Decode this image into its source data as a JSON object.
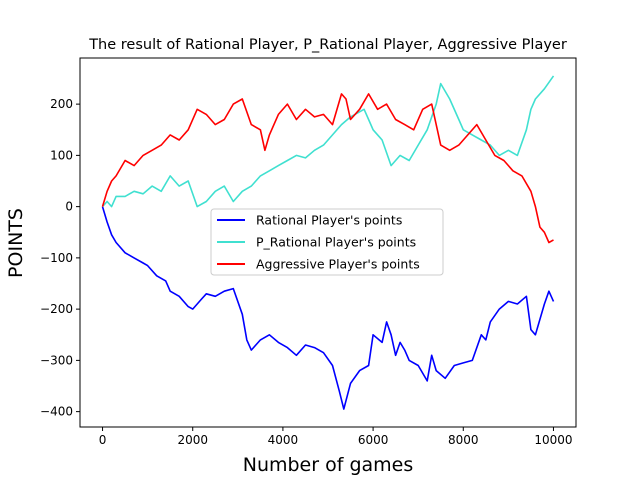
{
  "chart_data": {
    "type": "line",
    "title": "The result of Rational Player, P_Rational Player, Aggressive Player",
    "xlabel": "Number of games",
    "ylabel": "POINTS",
    "xlim": [
      -500,
      10500
    ],
    "ylim": [
      -430,
      290
    ],
    "xticks": [
      0,
      2000,
      4000,
      6000,
      8000,
      10000
    ],
    "xtick_labels": [
      "0",
      "2000",
      "4000",
      "6000",
      "8000",
      "10000"
    ],
    "yticks": [
      -400,
      -300,
      -200,
      -100,
      0,
      100,
      200
    ],
    "ytick_labels": [
      "−400",
      "−300",
      "−200",
      "−100",
      "0",
      "100",
      "200"
    ],
    "grid": false,
    "legend_position": "center",
    "series": [
      {
        "name": "Rational Player's points",
        "color": "#0000ff",
        "x": [
          0,
          100,
          200,
          300,
          500,
          700,
          900,
          1000,
          1200,
          1400,
          1500,
          1700,
          1900,
          2000,
          2200,
          2300,
          2500,
          2700,
          2900,
          3100,
          3200,
          3300,
          3500,
          3700,
          3900,
          4100,
          4300,
          4500,
          4700,
          4900,
          5100,
          5250,
          5350,
          5500,
          5700,
          5900,
          6000,
          6200,
          6300,
          6400,
          6500,
          6600,
          6700,
          6800,
          7000,
          7200,
          7300,
          7400,
          7600,
          7800,
          8000,
          8200,
          8400,
          8500,
          8600,
          8800,
          9000,
          9200,
          9400,
          9500,
          9600,
          9800,
          9900,
          10000
        ],
        "y": [
          0,
          -30,
          -55,
          -70,
          -90,
          -100,
          -110,
          -115,
          -135,
          -145,
          -165,
          -175,
          -195,
          -200,
          -180,
          -170,
          -175,
          -165,
          -160,
          -210,
          -260,
          -280,
          -260,
          -250,
          -265,
          -275,
          -290,
          -270,
          -275,
          -285,
          -310,
          -360,
          -395,
          -345,
          -320,
          -310,
          -250,
          -265,
          -225,
          -250,
          -290,
          -265,
          -280,
          -300,
          -310,
          -340,
          -290,
          -320,
          -335,
          -310,
          -305,
          -300,
          -250,
          -260,
          -225,
          -200,
          -185,
          -190,
          -175,
          -240,
          -250,
          -190,
          -165,
          -185
        ]
      },
      {
        "name": "P_Rational Player's points",
        "color": "#40e0d0",
        "x": [
          0,
          100,
          200,
          300,
          500,
          700,
          900,
          1100,
          1300,
          1500,
          1700,
          1900,
          2100,
          2300,
          2500,
          2700,
          2900,
          3100,
          3300,
          3500,
          3700,
          3900,
          4100,
          4300,
          4500,
          4700,
          4900,
          5100,
          5300,
          5500,
          5700,
          5800,
          5900,
          6000,
          6200,
          6400,
          6600,
          6800,
          7000,
          7200,
          7400,
          7500,
          7700,
          7900,
          8000,
          8200,
          8400,
          8600,
          8800,
          9000,
          9200,
          9400,
          9500,
          9600,
          9800,
          10000
        ],
        "y": [
          0,
          10,
          0,
          20,
          20,
          30,
          25,
          40,
          30,
          60,
          40,
          50,
          0,
          10,
          30,
          40,
          10,
          30,
          40,
          60,
          70,
          80,
          90,
          100,
          95,
          110,
          120,
          140,
          160,
          175,
          185,
          190,
          170,
          150,
          130,
          80,
          100,
          90,
          120,
          150,
          200,
          240,
          210,
          170,
          150,
          140,
          130,
          120,
          100,
          110,
          100,
          150,
          190,
          210,
          230,
          255
        ]
      },
      {
        "name": "Aggressive Player's points",
        "color": "#ff0000",
        "x": [
          0,
          100,
          200,
          300,
          500,
          700,
          900,
          1100,
          1300,
          1500,
          1700,
          1900,
          2100,
          2300,
          2500,
          2700,
          2900,
          3100,
          3300,
          3500,
          3600,
          3700,
          3900,
          4100,
          4300,
          4500,
          4700,
          4900,
          5100,
          5300,
          5400,
          5500,
          5700,
          5900,
          6100,
          6300,
          6500,
          6700,
          6900,
          7100,
          7300,
          7500,
          7700,
          7900,
          8100,
          8300,
          8500,
          8700,
          8900,
          9100,
          9300,
          9500,
          9600,
          9700,
          9800,
          9900,
          10000
        ],
        "y": [
          0,
          30,
          50,
          60,
          90,
          80,
          100,
          110,
          120,
          140,
          130,
          150,
          190,
          180,
          160,
          170,
          200,
          210,
          160,
          150,
          110,
          140,
          180,
          200,
          170,
          190,
          175,
          180,
          160,
          220,
          210,
          170,
          190,
          220,
          190,
          200,
          170,
          160,
          150,
          190,
          200,
          120,
          110,
          120,
          140,
          160,
          130,
          100,
          90,
          70,
          60,
          30,
          0,
          -40,
          -50,
          -70,
          -65
        ]
      }
    ]
  }
}
